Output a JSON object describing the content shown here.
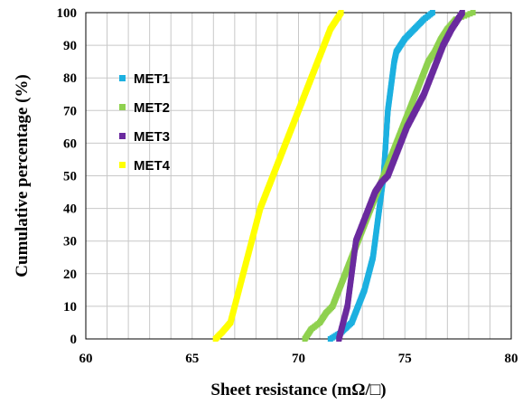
{
  "chart_data": {
    "type": "scatter",
    "title": "",
    "xlabel": "Sheet resistance (mΩ/□)",
    "ylabel": "Cumulative percentage (%)",
    "xlim": [
      60,
      80
    ],
    "ylim": [
      0,
      100
    ],
    "x_ticks": [
      "60",
      "65",
      "70",
      "75",
      "80"
    ],
    "y_ticks": [
      "0",
      "10",
      "20",
      "30",
      "40",
      "50",
      "60",
      "70",
      "80",
      "90",
      "100"
    ],
    "grid": true,
    "legend_position": "left",
    "series": [
      {
        "name": "MET1",
        "color": "#1cb0e0",
        "points": [
          [
            71.5,
            0
          ],
          [
            72.0,
            2
          ],
          [
            72.5,
            5
          ],
          [
            72.8,
            10
          ],
          [
            73.1,
            15
          ],
          [
            73.3,
            20
          ],
          [
            73.5,
            25
          ],
          [
            73.6,
            30
          ],
          [
            73.7,
            35
          ],
          [
            73.8,
            40
          ],
          [
            73.9,
            45
          ],
          [
            74.0,
            50
          ],
          [
            74.05,
            55
          ],
          [
            74.1,
            60
          ],
          [
            74.15,
            65
          ],
          [
            74.2,
            70
          ],
          [
            74.3,
            75
          ],
          [
            74.4,
            80
          ],
          [
            74.5,
            85
          ],
          [
            74.6,
            88
          ],
          [
            74.8,
            90
          ],
          [
            75.0,
            92
          ],
          [
            75.3,
            94
          ],
          [
            75.6,
            96
          ],
          [
            75.9,
            98
          ],
          [
            76.3,
            100
          ]
        ]
      },
      {
        "name": "MET2",
        "color": "#8fd14f",
        "points": [
          [
            70.3,
            0
          ],
          [
            70.6,
            3
          ],
          [
            71.0,
            5
          ],
          [
            71.3,
            8
          ],
          [
            71.6,
            10
          ],
          [
            71.9,
            15
          ],
          [
            72.2,
            20
          ],
          [
            72.5,
            25
          ],
          [
            72.8,
            30
          ],
          [
            73.1,
            35
          ],
          [
            73.4,
            40
          ],
          [
            73.7,
            45
          ],
          [
            74.0,
            50
          ],
          [
            74.3,
            55
          ],
          [
            74.6,
            60
          ],
          [
            74.9,
            65
          ],
          [
            75.2,
            70
          ],
          [
            75.5,
            75
          ],
          [
            75.8,
            80
          ],
          [
            76.1,
            85
          ],
          [
            76.4,
            88
          ],
          [
            76.7,
            92
          ],
          [
            77.0,
            95
          ],
          [
            77.4,
            98
          ],
          [
            78.2,
            100
          ]
        ]
      },
      {
        "name": "MET3",
        "color": "#6a2a9e",
        "points": [
          [
            71.9,
            0
          ],
          [
            72.1,
            5
          ],
          [
            72.3,
            10
          ],
          [
            72.5,
            20
          ],
          [
            72.7,
            30
          ],
          [
            73.0,
            35
          ],
          [
            73.3,
            40
          ],
          [
            73.6,
            45
          ],
          [
            73.9,
            48
          ],
          [
            74.2,
            50
          ],
          [
            74.5,
            55
          ],
          [
            74.8,
            60
          ],
          [
            75.1,
            65
          ],
          [
            75.5,
            70
          ],
          [
            75.9,
            75
          ],
          [
            76.2,
            80
          ],
          [
            76.5,
            85
          ],
          [
            76.8,
            90
          ],
          [
            77.2,
            95
          ],
          [
            77.5,
            98
          ],
          [
            77.7,
            100
          ]
        ]
      },
      {
        "name": "MET4",
        "color": "#ffff00",
        "points": [
          [
            66.1,
            0
          ],
          [
            66.4,
            2
          ],
          [
            66.8,
            5
          ],
          [
            67.0,
            10
          ],
          [
            67.2,
            15
          ],
          [
            67.4,
            20
          ],
          [
            67.6,
            25
          ],
          [
            67.8,
            30
          ],
          [
            68.0,
            35
          ],
          [
            68.2,
            40
          ],
          [
            68.5,
            45
          ],
          [
            68.8,
            50
          ],
          [
            69.1,
            55
          ],
          [
            69.4,
            60
          ],
          [
            69.7,
            65
          ],
          [
            70.0,
            70
          ],
          [
            70.3,
            75
          ],
          [
            70.6,
            80
          ],
          [
            70.9,
            85
          ],
          [
            71.2,
            90
          ],
          [
            71.5,
            95
          ],
          [
            71.8,
            98
          ],
          [
            72.0,
            100
          ]
        ]
      }
    ]
  }
}
